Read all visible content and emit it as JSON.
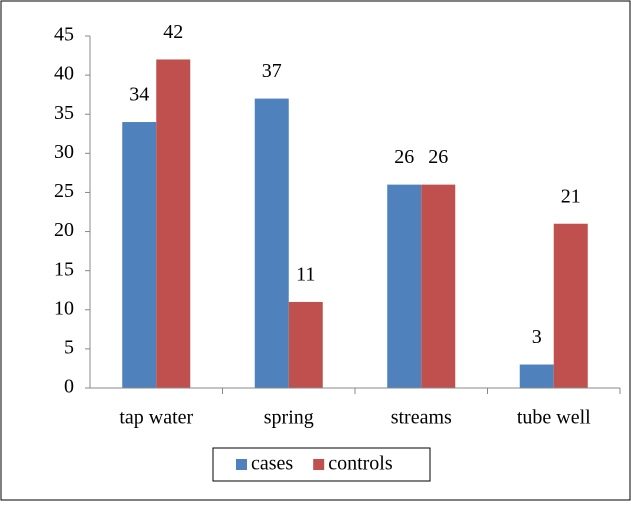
{
  "chart_data": {
    "type": "bar",
    "categories": [
      "tap water",
      "spring",
      "streams",
      "tube well"
    ],
    "series": [
      {
        "name": "cases",
        "color": "#4f81bd",
        "values": [
          34,
          37,
          26,
          3
        ]
      },
      {
        "name": "controls",
        "color": "#c0504d",
        "values": [
          42,
          11,
          26,
          21
        ]
      }
    ],
    "ylim": [
      0,
      45
    ],
    "yticks": [
      0,
      5,
      10,
      15,
      20,
      25,
      30,
      35,
      40,
      45
    ],
    "data_labels": true,
    "legend": "bottom"
  }
}
